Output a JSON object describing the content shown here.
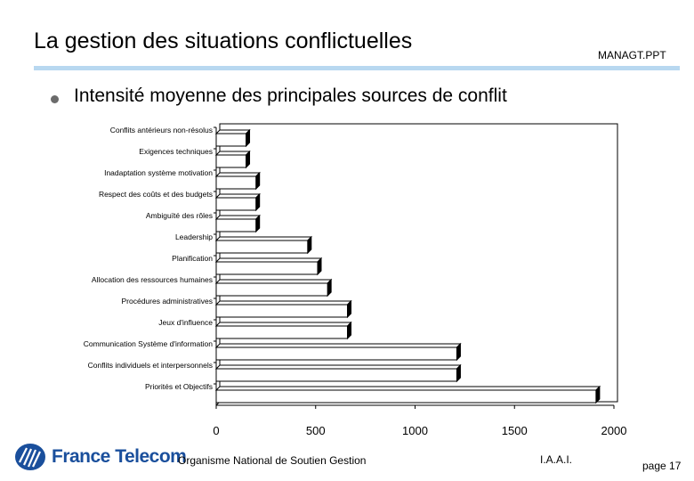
{
  "header": {
    "title": "La gestion des situations conflictuelles",
    "filename": "MANAGT.PPT"
  },
  "subtitle": "Intensité moyenne des principales sources de conflit",
  "chart_data": {
    "type": "bar",
    "orientation": "horizontal",
    "categories": [
      "Conflits antérieurs non-résolus",
      "Exigences techniques",
      "Inadaptation système motivation",
      "Respect des coûts et des budgets",
      "Ambiguïté des rôles",
      "Leadership",
      "Planification",
      "Allocation des ressources humaines",
      "Procédures administratives",
      "Jeux d'influence",
      "Communication Système d'information",
      "Conflits individuels et interpersonnels",
      "Priorités et Objectifs"
    ],
    "values": [
      150,
      150,
      200,
      200,
      200,
      460,
      510,
      560,
      660,
      660,
      1210,
      1210,
      1910
    ],
    "x_ticks": [
      "0",
      "500",
      "1000",
      "1500",
      "2000"
    ],
    "xlim": [
      0,
      2000
    ],
    "bar_color": "#ffffff",
    "edge_color": "#000000",
    "style": "3d",
    "grid": false
  },
  "footer": {
    "brand": "France Telecom",
    "organization": "Organisme National de Soutien Gestion",
    "code": "I.A.A.I.",
    "page": "page 17"
  },
  "icons": {
    "bullet": "bullet-dot",
    "logo": "france-telecom-logo-icon"
  }
}
